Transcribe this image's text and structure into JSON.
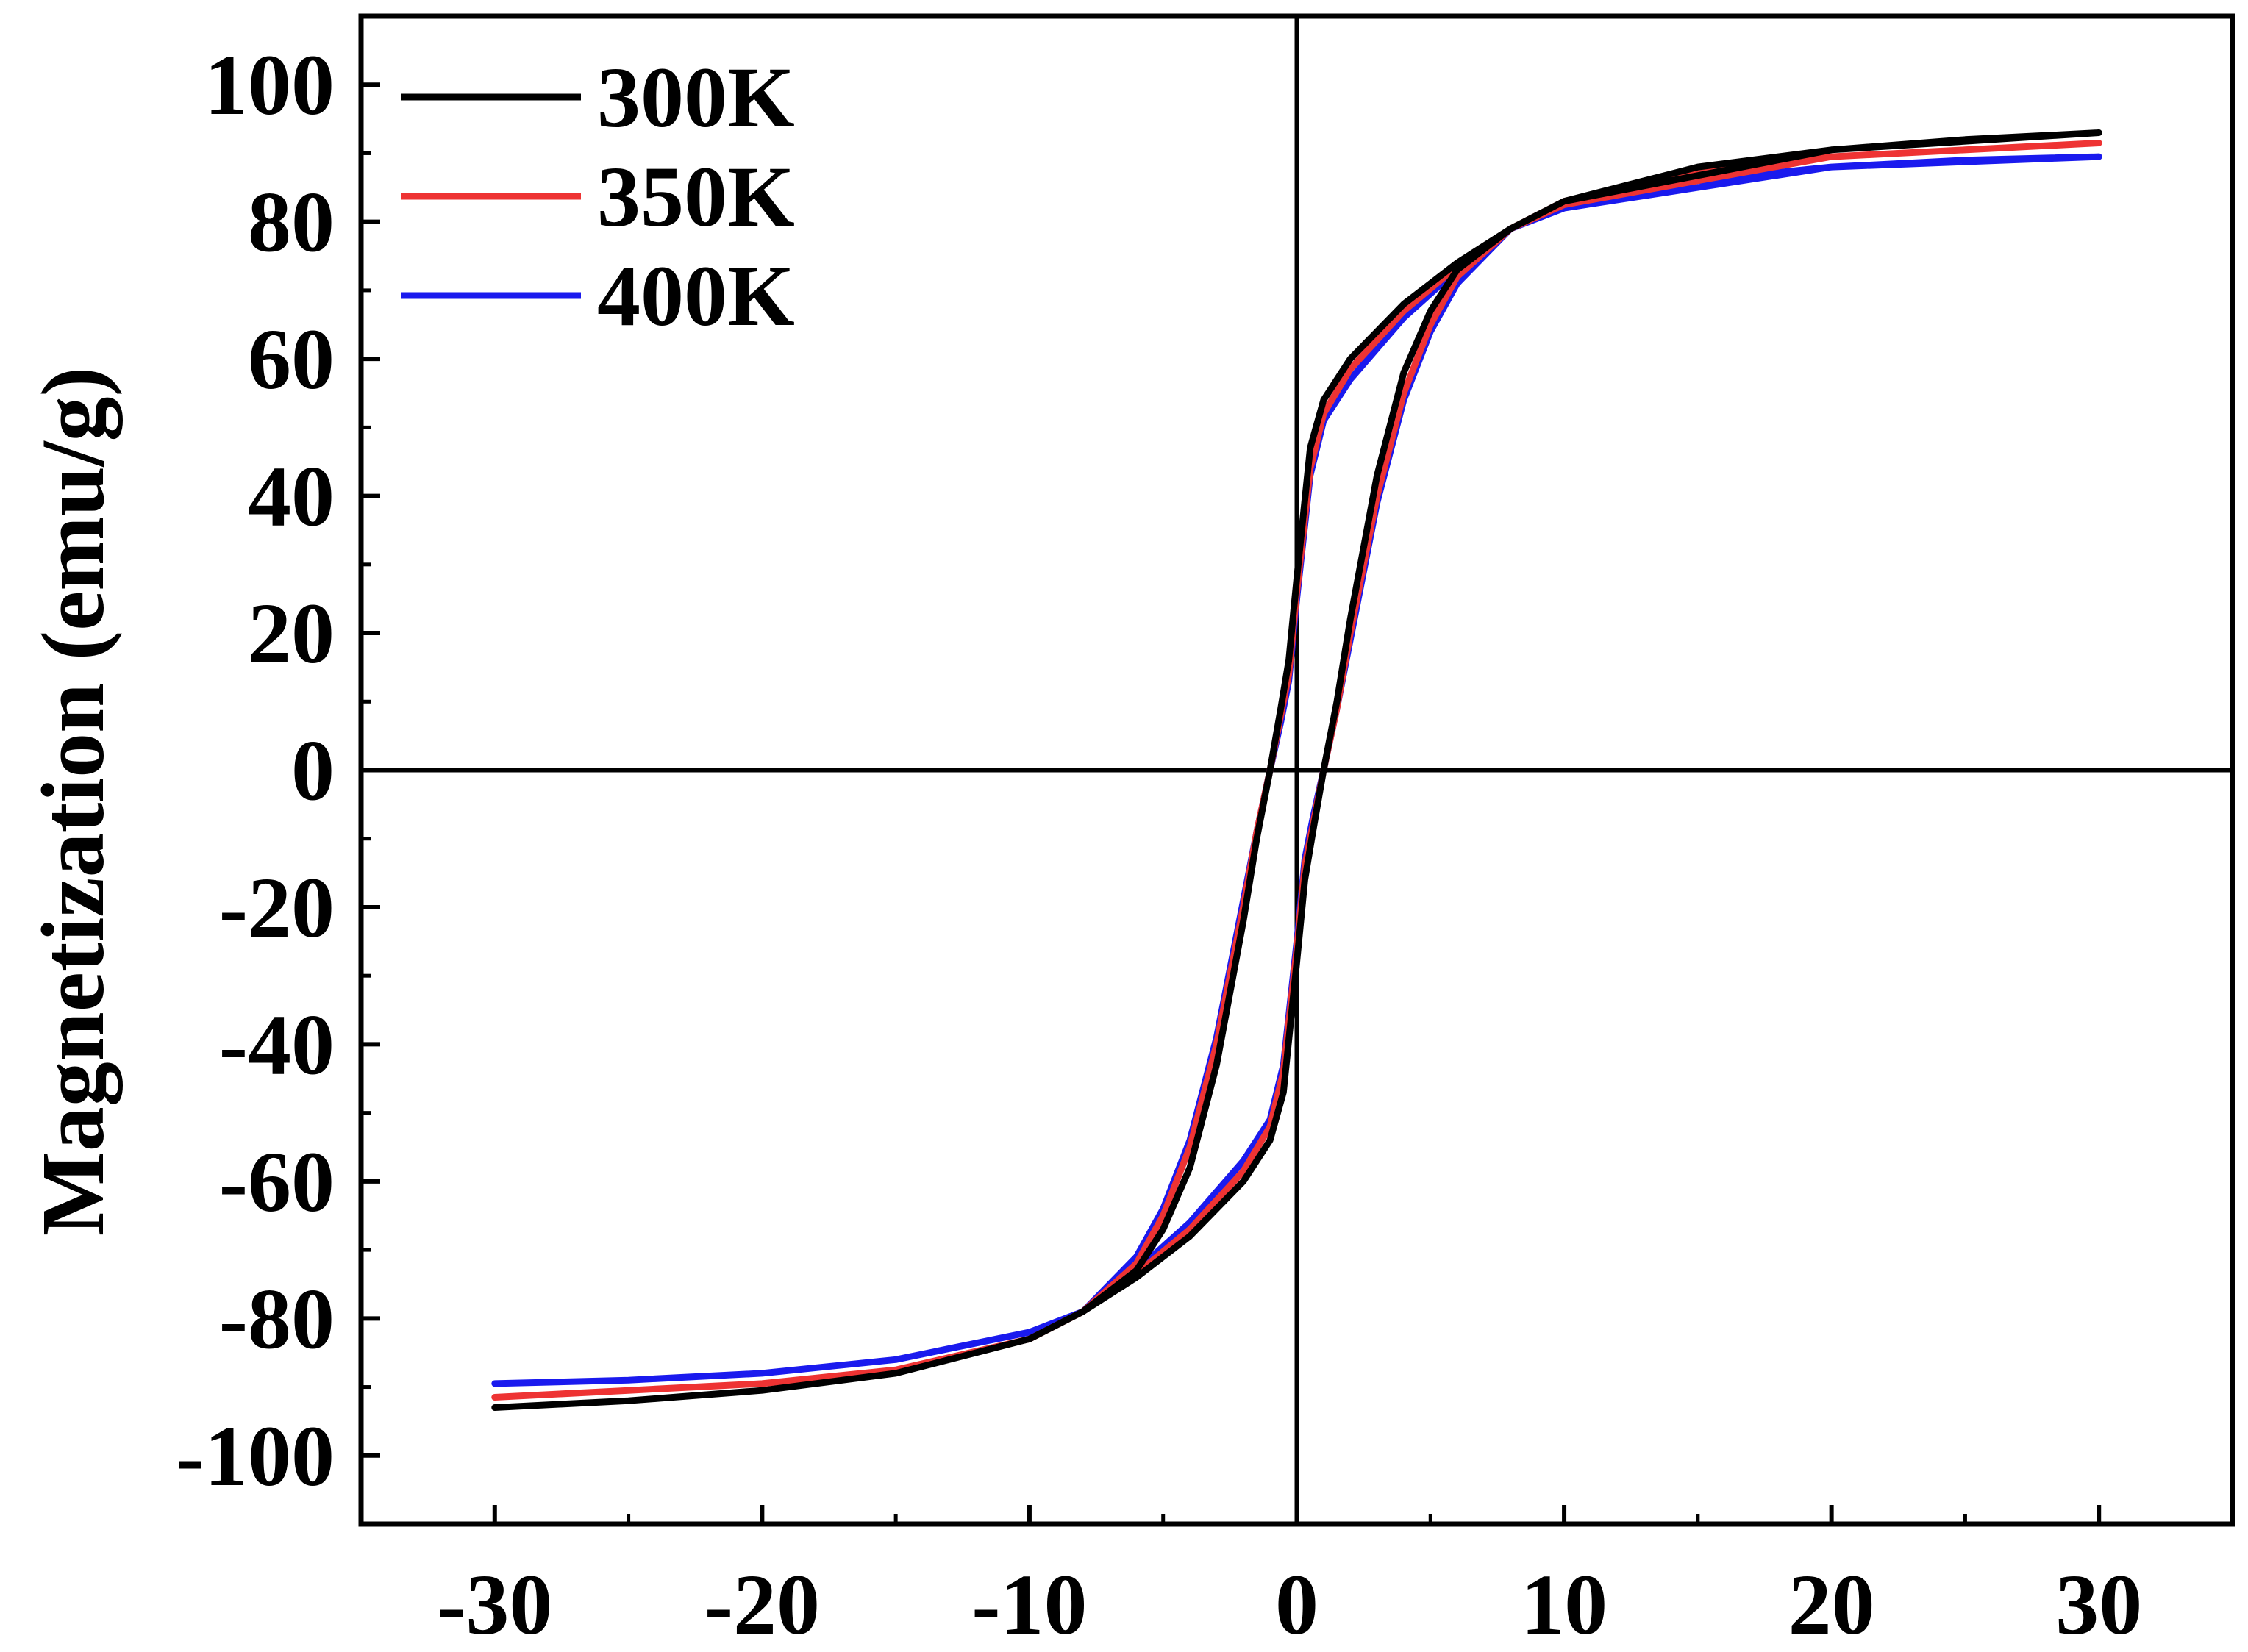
{
  "chart_data": {
    "type": "line",
    "title": "",
    "xlabel": "",
    "ylabel": "Magnetization (emu/g)",
    "xlim": [
      -35,
      35
    ],
    "ylim": [
      -110,
      110
    ],
    "x_ticks": [
      -30,
      -20,
      -10,
      0,
      10,
      20,
      30
    ],
    "x_tick_labels": [
      "-30",
      "-20",
      "-10",
      "0",
      "10",
      "20",
      "30"
    ],
    "y_ticks": [
      -100,
      -80,
      -60,
      -40,
      -20,
      0,
      20,
      40,
      60,
      80,
      100
    ],
    "y_tick_labels": [
      "-100",
      "-80",
      "-60",
      "-40",
      "-20",
      "0",
      "20",
      "40",
      "60",
      "80",
      "100"
    ],
    "grid": false,
    "zero_lines": true,
    "legend_position": "top-left",
    "series": [
      {
        "name": "300K",
        "color": "#000000",
        "x": [
          30,
          20,
          10,
          8,
          6,
          4,
          2,
          1,
          0.5,
          0,
          -0.3,
          -0.6,
          -1,
          -1.5,
          -2,
          -3,
          -4,
          -5,
          -6,
          -8,
          -10,
          -15,
          -20,
          -25,
          -30,
          -25,
          -20,
          -15,
          -10,
          -8,
          -6,
          -4,
          -2,
          -1,
          -0.5,
          0,
          0.3,
          0.6,
          1,
          1.5,
          2,
          3,
          4,
          5,
          6,
          8,
          10,
          15,
          20,
          25,
          30
        ],
        "y": [
          93,
          90.5,
          83,
          79,
          74,
          68,
          60,
          54,
          47,
          28,
          16,
          9,
          0,
          -10,
          -22,
          -43,
          -58,
          -67,
          -73,
          -79,
          -83,
          -88,
          -90.5,
          -92,
          -93,
          -92,
          -90.5,
          -88,
          -83,
          -79,
          -74,
          -68,
          -60,
          -54,
          -47,
          -28,
          -16,
          -9,
          0,
          10,
          22,
          43,
          58,
          67,
          73,
          79,
          83,
          88,
          90.5,
          92,
          93
        ]
      },
      {
        "name": "350K",
        "color": "#ee3333",
        "x": [
          30,
          20,
          10,
          8,
          6,
          4,
          2,
          1,
          0.5,
          0,
          -0.3,
          -0.6,
          -1,
          -1.5,
          -2,
          -3,
          -4,
          -5,
          -6,
          -8,
          -10,
          -15,
          -20,
          -25,
          -30,
          -25,
          -20,
          -15,
          -10,
          -8,
          -6,
          -4,
          -2,
          -1,
          -0.5,
          0,
          0.3,
          0.6,
          1,
          1.5,
          2,
          3,
          4,
          5,
          6,
          8,
          10,
          15,
          20,
          25,
          30
        ],
        "y": [
          91.5,
          89.5,
          82.5,
          79,
          73.5,
          67,
          58.5,
          52,
          44,
          26,
          14,
          8,
          0,
          -9,
          -20,
          -40,
          -55,
          -65,
          -72,
          -79,
          -83,
          -87.5,
          -89.5,
          -90.5,
          -91.5,
          -90.5,
          -89.5,
          -87.5,
          -83,
          -79,
          -73.5,
          -67,
          -58.5,
          -52,
          -44,
          -26,
          -14,
          -8,
          0,
          9,
          20,
          40,
          55,
          65,
          72,
          79,
          83,
          87.5,
          89.5,
          90.5,
          91.5
        ]
      },
      {
        "name": "400K",
        "color": "#1a1aee",
        "x": [
          30,
          20,
          10,
          8,
          6,
          4,
          2,
          1,
          0.5,
          0,
          -0.3,
          -0.6,
          -1,
          -1.5,
          -2,
          -3,
          -4,
          -5,
          -6,
          -8,
          -10,
          -15,
          -20,
          -25,
          -30,
          -25,
          -20,
          -15,
          -10,
          -8,
          -6,
          -4,
          -2,
          -1,
          -0.5,
          0,
          0.3,
          0.6,
          1,
          1.5,
          2,
          3,
          4,
          5,
          6,
          8,
          10,
          15,
          20,
          25,
          30
        ],
        "y": [
          89.5,
          88,
          82,
          79,
          73,
          66,
          57,
          51,
          43,
          25,
          13,
          7,
          0,
          -9,
          -19,
          -39,
          -54,
          -64,
          -71,
          -79,
          -82,
          -86,
          -88,
          -89,
          -89.5,
          -89,
          -88,
          -86,
          -82,
          -79,
          -73,
          -66,
          -57,
          -51,
          -43,
          -25,
          -13,
          -7,
          0,
          9,
          19,
          39,
          54,
          64,
          71,
          79,
          82,
          86,
          88,
          89,
          89.5
        ]
      }
    ]
  }
}
